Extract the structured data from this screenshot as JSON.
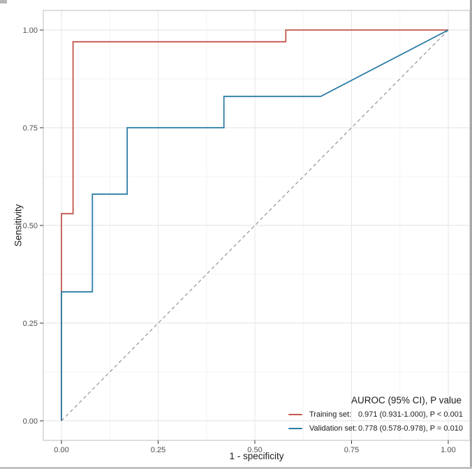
{
  "chart_data": {
    "type": "line",
    "title": "",
    "xlabel": "1 - specificity",
    "ylabel": "Sensitivity",
    "xlim": [
      0,
      1
    ],
    "ylim": [
      0,
      1
    ],
    "x_ticks": [
      "0.00",
      "0.25",
      "0.50",
      "0.75",
      "1.00"
    ],
    "y_ticks": [
      "0.00",
      "0.25",
      "0.50",
      "0.75",
      "1.00"
    ],
    "x_tick_values": [
      0,
      0.25,
      0.5,
      0.75,
      1
    ],
    "y_tick_values": [
      0,
      0.25,
      0.5,
      0.75,
      1
    ],
    "minor_tick_values": [
      0.125,
      0.375,
      0.625,
      0.875
    ],
    "grid": true,
    "legend_position": "bottom-right",
    "series": [
      {
        "name": "Training set",
        "color": "#c4564c",
        "points": [
          [
            0,
            0
          ],
          [
            0,
            0.53
          ],
          [
            0.03,
            0.53
          ],
          [
            0.03,
            0.97
          ],
          [
            0.58,
            0.97
          ],
          [
            0.58,
            1.0
          ],
          [
            1.0,
            1.0
          ]
        ]
      },
      {
        "name": "Validation set",
        "color": "#2b7ca6",
        "points": [
          [
            0,
            0
          ],
          [
            0,
            0.33
          ],
          [
            0.08,
            0.33
          ],
          [
            0.08,
            0.58
          ],
          [
            0.17,
            0.58
          ],
          [
            0.17,
            0.75
          ],
          [
            0.42,
            0.75
          ],
          [
            0.42,
            0.83
          ],
          [
            0.67,
            0.83
          ],
          [
            1.0,
            1.0
          ]
        ]
      }
    ],
    "reference_line": {
      "name": "chance-diagonal",
      "points": [
        [
          0,
          0
        ],
        [
          1,
          1
        ]
      ],
      "style": "dashed",
      "color": "#9b9b9b"
    }
  },
  "legend": {
    "title": "AUROC (95% CI), P value",
    "entries": [
      {
        "label": "Training set:",
        "value": "0.971 (0.931-1.000), P < 0.001",
        "color": "#c4564c"
      },
      {
        "label": "Validation set:",
        "value": "0.778 (0.578-0.978), P = 0.010",
        "color": "#2b7ca6"
      }
    ]
  },
  "colors": {
    "panel_background": "#ffffff",
    "panel_border": "#c9c9c9",
    "grid_major": "#e8e8e8",
    "grid_minor": "#f3f3f3",
    "tick_mark": "#333333",
    "tick_label": "#4d4d4d",
    "training_curve": "#c4564c",
    "validation_curve": "#2b7ca6",
    "diagonal": "#9b9b9b"
  }
}
